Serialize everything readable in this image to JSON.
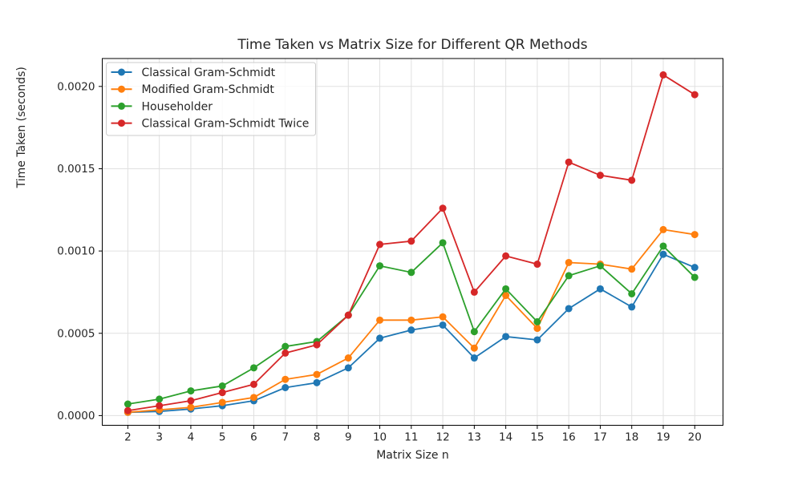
{
  "chart_data": {
    "type": "line",
    "title": "Time Taken vs Matrix Size for Different QR Methods",
    "xlabel": "Matrix Size n",
    "ylabel": "Time Taken (seconds)",
    "x": [
      2,
      3,
      4,
      5,
      6,
      7,
      8,
      9,
      10,
      11,
      12,
      13,
      14,
      15,
      16,
      17,
      18,
      19,
      20
    ],
    "x_tick_labels": [
      "2",
      "3",
      "4",
      "5",
      "6",
      "7",
      "8",
      "9",
      "10",
      "11",
      "12",
      "13",
      "14",
      "15",
      "16",
      "17",
      "18",
      "19",
      "20"
    ],
    "y_ticks": [
      0.0,
      0.0005,
      0.001,
      0.0015,
      0.002
    ],
    "y_tick_labels": [
      "0.0000",
      "0.0005",
      "0.0010",
      "0.0015",
      "0.0020"
    ],
    "xlim": [
      1.1,
      20.9
    ],
    "ylim": [
      -6e-05,
      0.00217
    ],
    "grid": true,
    "legend_position": "upper left",
    "series": [
      {
        "name": "Classical Gram-Schmidt",
        "color": "#1f77b4",
        "marker": "circle",
        "values": [
          2e-05,
          2.5e-05,
          4e-05,
          6e-05,
          9e-05,
          0.00017,
          0.0002,
          0.00029,
          0.00047,
          0.00052,
          0.00055,
          0.00035,
          0.00048,
          0.00046,
          0.00065,
          0.00077,
          0.00066,
          0.00098,
          0.0009
        ]
      },
      {
        "name": "Modified Gram-Schmidt",
        "color": "#ff7f0e",
        "marker": "circle",
        "values": [
          2e-05,
          3.5e-05,
          5e-05,
          8e-05,
          0.00011,
          0.00022,
          0.00025,
          0.00035,
          0.00058,
          0.00058,
          0.0006,
          0.00041,
          0.00073,
          0.00053,
          0.00093,
          0.00092,
          0.00089,
          0.00113,
          0.0011
        ]
      },
      {
        "name": "Householder",
        "color": "#2ca02c",
        "marker": "circle",
        "values": [
          7e-05,
          0.0001,
          0.00015,
          0.00018,
          0.00029,
          0.00042,
          0.00045,
          0.00061,
          0.00091,
          0.00087,
          0.00105,
          0.00051,
          0.00077,
          0.00057,
          0.00085,
          0.00091,
          0.00074,
          0.00103,
          0.00084
        ]
      },
      {
        "name": "Classical Gram-Schmidt Twice",
        "color": "#d62728",
        "marker": "circle",
        "values": [
          3e-05,
          6e-05,
          9e-05,
          0.00014,
          0.00019,
          0.00038,
          0.00043,
          0.00061,
          0.00104,
          0.00106,
          0.00126,
          0.00075,
          0.00097,
          0.00092,
          0.00154,
          0.00146,
          0.00143,
          0.00207,
          0.00195
        ]
      }
    ],
    "style": {
      "grid_color": "#e0e0e0",
      "spine_color": "#000000",
      "background": "#ffffff",
      "legend_edge_color": "#cccccc"
    }
  }
}
